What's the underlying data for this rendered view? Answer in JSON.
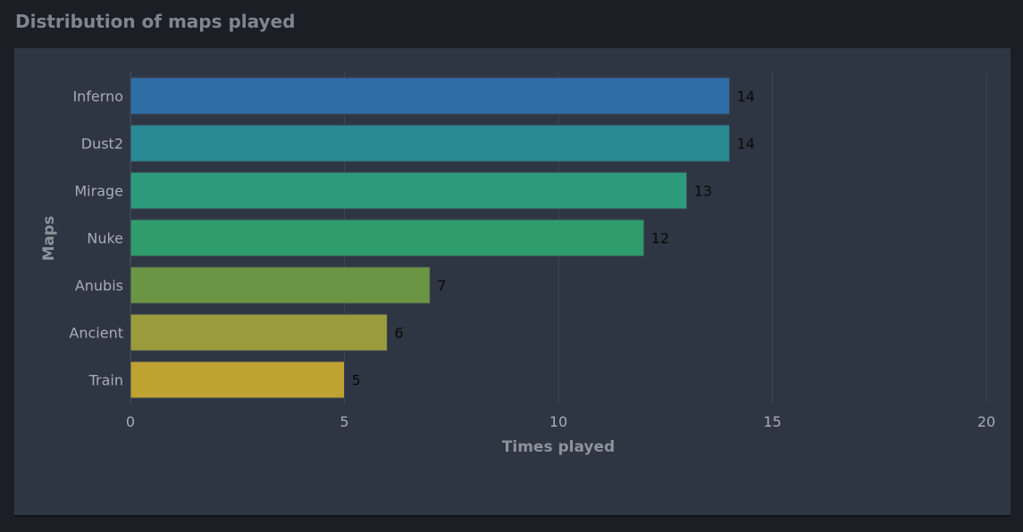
{
  "card": {
    "title": "Distribution of maps played"
  },
  "chart_data": {
    "type": "bar",
    "orientation": "horizontal",
    "categories": [
      "Inferno",
      "Dust2",
      "Mirage",
      "Nuke",
      "Anubis",
      "Ancient",
      "Train"
    ],
    "values": [
      14,
      14,
      13,
      12,
      7,
      6,
      5
    ],
    "colors": [
      "#2f6da7",
      "#2a8a93",
      "#2e9a7c",
      "#2e9c6b",
      "#6b9444",
      "#9a9b3c",
      "#bfa332"
    ],
    "xlabel": "Times played",
    "ylabel": "Maps",
    "xlim": [
      0,
      20
    ],
    "xticks": [
      0,
      5,
      10,
      15,
      20
    ],
    "grid": "vertical",
    "data_labels": true
  }
}
